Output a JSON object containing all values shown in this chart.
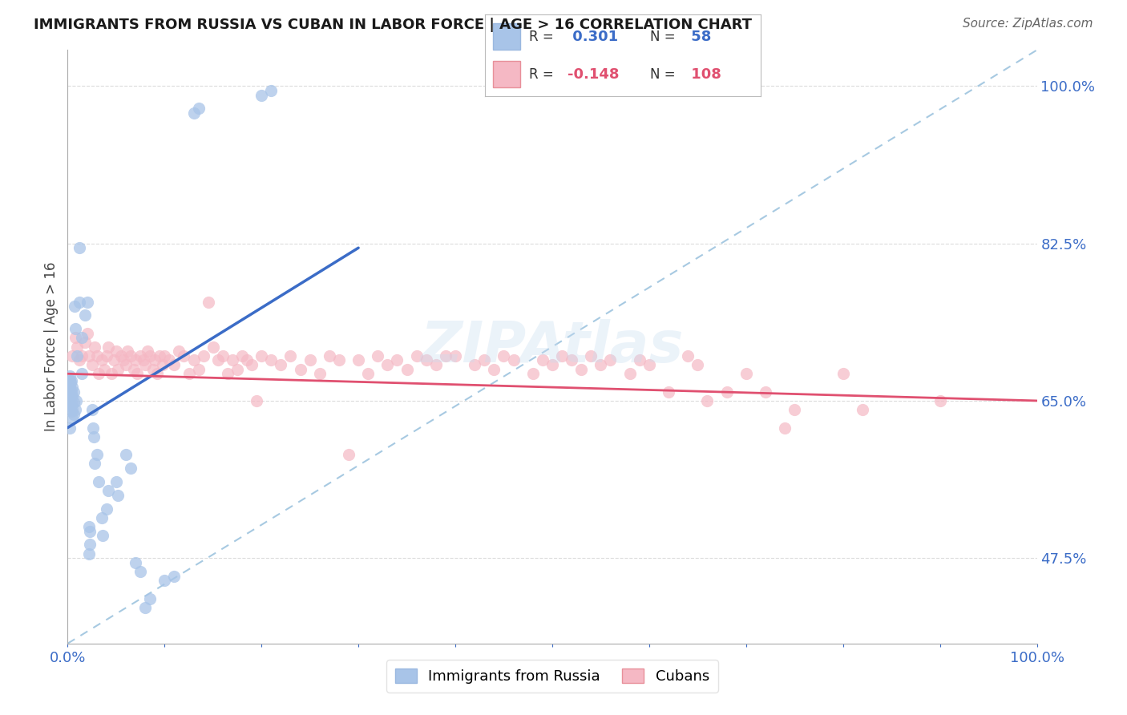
{
  "title": "IMMIGRANTS FROM RUSSIA VS CUBAN IN LABOR FORCE | AGE > 16 CORRELATION CHART",
  "source_text": "Source: ZipAtlas.com",
  "ylabel": "In Labor Force | Age > 16",
  "xlim": [
    0.0,
    1.0
  ],
  "ylim": [
    0.38,
    1.04
  ],
  "yticks": [
    0.475,
    0.65,
    0.825,
    1.0
  ],
  "ytick_labels": [
    "47.5%",
    "65.0%",
    "82.5%",
    "100.0%"
  ],
  "xtick_labels_bottom": [
    "0.0%",
    "100.0%"
  ],
  "russia_color": "#a8c4e8",
  "cuba_color": "#f5b8c4",
  "russia_R": 0.301,
  "russia_N": 58,
  "cuba_R": -0.148,
  "cuba_N": 108,
  "russia_line_color": "#3b6cc7",
  "cuba_line_color": "#e05070",
  "diag_line_color": "#8ab8d8",
  "tick_color": "#3b6cc7",
  "watermark": "ZIPAtlas",
  "russia_scatter": [
    [
      0.002,
      0.62
    ],
    [
      0.002,
      0.648
    ],
    [
      0.002,
      0.665
    ],
    [
      0.002,
      0.672
    ],
    [
      0.002,
      0.678
    ],
    [
      0.003,
      0.645
    ],
    [
      0.003,
      0.655
    ],
    [
      0.003,
      0.67
    ],
    [
      0.004,
      0.638
    ],
    [
      0.004,
      0.648
    ],
    [
      0.004,
      0.66
    ],
    [
      0.004,
      0.672
    ],
    [
      0.005,
      0.63
    ],
    [
      0.005,
      0.64
    ],
    [
      0.005,
      0.655
    ],
    [
      0.005,
      0.665
    ],
    [
      0.006,
      0.635
    ],
    [
      0.006,
      0.648
    ],
    [
      0.006,
      0.66
    ],
    [
      0.007,
      0.755
    ],
    [
      0.008,
      0.73
    ],
    [
      0.008,
      0.64
    ],
    [
      0.009,
      0.65
    ],
    [
      0.01,
      0.7
    ],
    [
      0.012,
      0.76
    ],
    [
      0.012,
      0.82
    ],
    [
      0.015,
      0.72
    ],
    [
      0.015,
      0.68
    ],
    [
      0.018,
      0.745
    ],
    [
      0.02,
      0.76
    ],
    [
      0.022,
      0.48
    ],
    [
      0.022,
      0.51
    ],
    [
      0.023,
      0.49
    ],
    [
      0.023,
      0.505
    ],
    [
      0.025,
      0.64
    ],
    [
      0.026,
      0.62
    ],
    [
      0.027,
      0.61
    ],
    [
      0.028,
      0.58
    ],
    [
      0.03,
      0.59
    ],
    [
      0.032,
      0.56
    ],
    [
      0.035,
      0.52
    ],
    [
      0.036,
      0.5
    ],
    [
      0.04,
      0.53
    ],
    [
      0.042,
      0.55
    ],
    [
      0.05,
      0.56
    ],
    [
      0.052,
      0.545
    ],
    [
      0.06,
      0.59
    ],
    [
      0.065,
      0.575
    ],
    [
      0.07,
      0.47
    ],
    [
      0.075,
      0.46
    ],
    [
      0.08,
      0.42
    ],
    [
      0.085,
      0.43
    ],
    [
      0.1,
      0.45
    ],
    [
      0.11,
      0.455
    ],
    [
      0.13,
      0.97
    ],
    [
      0.135,
      0.975
    ],
    [
      0.2,
      0.99
    ],
    [
      0.21,
      0.995
    ]
  ],
  "cuba_scatter": [
    [
      0.005,
      0.7
    ],
    [
      0.008,
      0.72
    ],
    [
      0.01,
      0.71
    ],
    [
      0.012,
      0.695
    ],
    [
      0.015,
      0.7
    ],
    [
      0.018,
      0.715
    ],
    [
      0.02,
      0.725
    ],
    [
      0.022,
      0.7
    ],
    [
      0.025,
      0.69
    ],
    [
      0.028,
      0.71
    ],
    [
      0.03,
      0.7
    ],
    [
      0.032,
      0.68
    ],
    [
      0.035,
      0.695
    ],
    [
      0.038,
      0.685
    ],
    [
      0.04,
      0.7
    ],
    [
      0.042,
      0.71
    ],
    [
      0.045,
      0.68
    ],
    [
      0.048,
      0.695
    ],
    [
      0.05,
      0.705
    ],
    [
      0.052,
      0.685
    ],
    [
      0.055,
      0.7
    ],
    [
      0.058,
      0.695
    ],
    [
      0.06,
      0.69
    ],
    [
      0.062,
      0.705
    ],
    [
      0.065,
      0.7
    ],
    [
      0.068,
      0.685
    ],
    [
      0.07,
      0.695
    ],
    [
      0.072,
      0.68
    ],
    [
      0.075,
      0.7
    ],
    [
      0.078,
      0.695
    ],
    [
      0.08,
      0.69
    ],
    [
      0.082,
      0.705
    ],
    [
      0.085,
      0.7
    ],
    [
      0.088,
      0.685
    ],
    [
      0.09,
      0.695
    ],
    [
      0.092,
      0.68
    ],
    [
      0.095,
      0.7
    ],
    [
      0.098,
      0.69
    ],
    [
      0.1,
      0.7
    ],
    [
      0.105,
      0.695
    ],
    [
      0.11,
      0.69
    ],
    [
      0.115,
      0.705
    ],
    [
      0.12,
      0.7
    ],
    [
      0.125,
      0.68
    ],
    [
      0.13,
      0.695
    ],
    [
      0.135,
      0.685
    ],
    [
      0.14,
      0.7
    ],
    [
      0.145,
      0.76
    ],
    [
      0.15,
      0.71
    ],
    [
      0.155,
      0.695
    ],
    [
      0.16,
      0.7
    ],
    [
      0.165,
      0.68
    ],
    [
      0.17,
      0.695
    ],
    [
      0.175,
      0.685
    ],
    [
      0.18,
      0.7
    ],
    [
      0.185,
      0.695
    ],
    [
      0.19,
      0.69
    ],
    [
      0.195,
      0.65
    ],
    [
      0.2,
      0.7
    ],
    [
      0.21,
      0.695
    ],
    [
      0.22,
      0.69
    ],
    [
      0.23,
      0.7
    ],
    [
      0.24,
      0.685
    ],
    [
      0.25,
      0.695
    ],
    [
      0.26,
      0.68
    ],
    [
      0.27,
      0.7
    ],
    [
      0.28,
      0.695
    ],
    [
      0.29,
      0.59
    ],
    [
      0.3,
      0.695
    ],
    [
      0.31,
      0.68
    ],
    [
      0.32,
      0.7
    ],
    [
      0.33,
      0.69
    ],
    [
      0.34,
      0.695
    ],
    [
      0.35,
      0.685
    ],
    [
      0.36,
      0.7
    ],
    [
      0.37,
      0.695
    ],
    [
      0.38,
      0.69
    ],
    [
      0.39,
      0.7
    ],
    [
      0.4,
      0.7
    ],
    [
      0.42,
      0.69
    ],
    [
      0.43,
      0.695
    ],
    [
      0.44,
      0.685
    ],
    [
      0.45,
      0.7
    ],
    [
      0.46,
      0.695
    ],
    [
      0.48,
      0.68
    ],
    [
      0.49,
      0.695
    ],
    [
      0.5,
      0.69
    ],
    [
      0.51,
      0.7
    ],
    [
      0.52,
      0.695
    ],
    [
      0.53,
      0.685
    ],
    [
      0.54,
      0.7
    ],
    [
      0.55,
      0.69
    ],
    [
      0.56,
      0.695
    ],
    [
      0.58,
      0.68
    ],
    [
      0.59,
      0.695
    ],
    [
      0.6,
      0.69
    ],
    [
      0.62,
      0.66
    ],
    [
      0.64,
      0.7
    ],
    [
      0.65,
      0.69
    ],
    [
      0.66,
      0.65
    ],
    [
      0.68,
      0.66
    ],
    [
      0.7,
      0.68
    ],
    [
      0.72,
      0.66
    ],
    [
      0.74,
      0.62
    ],
    [
      0.75,
      0.64
    ],
    [
      0.8,
      0.68
    ],
    [
      0.82,
      0.64
    ],
    [
      0.9,
      0.65
    ]
  ],
  "russia_line": [
    [
      0.0,
      0.62
    ],
    [
      0.3,
      0.82
    ]
  ],
  "cuba_line": [
    [
      0.0,
      0.68
    ],
    [
      1.0,
      0.65
    ]
  ],
  "diag_line": [
    [
      0.0,
      0.38
    ],
    [
      1.0,
      1.04
    ]
  ]
}
